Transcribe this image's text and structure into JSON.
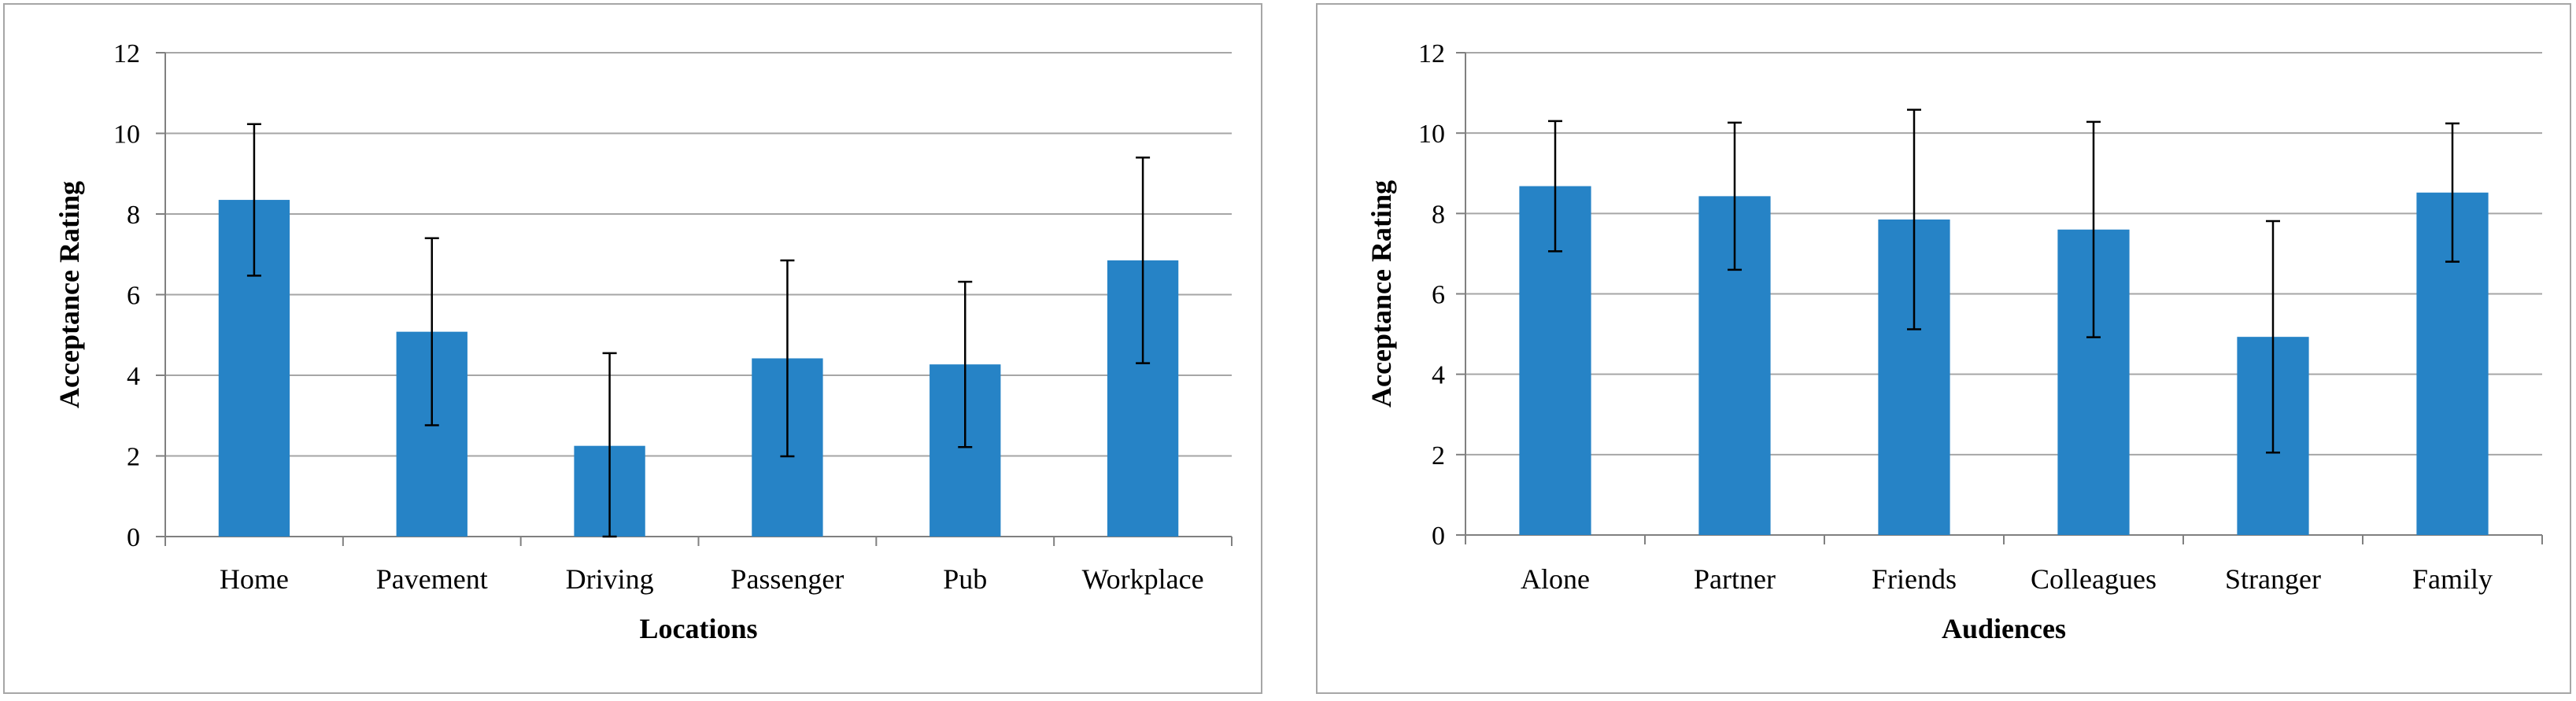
{
  "chart_data": [
    {
      "type": "bar",
      "categories": [
        "Home",
        "Pavement",
        "Driving",
        "Passenger",
        "Pub",
        "Workplace"
      ],
      "values": [
        8.35,
        5.08,
        2.25,
        4.42,
        4.27,
        6.85
      ],
      "errors": [
        1.88,
        2.32,
        2.3,
        2.43,
        2.05,
        2.55
      ],
      "xlabel": "Locations",
      "ylabel": "Acceptance Rating",
      "ylim": [
        0,
        12
      ],
      "yticks": [
        "0",
        "2",
        "4",
        "6",
        "8",
        "10",
        "12"
      ],
      "grid": true,
      "bar_color": "#2683C6"
    },
    {
      "type": "bar",
      "categories": [
        "Alone",
        "Partner",
        "Friends",
        "Colleagues",
        "Stranger",
        "Family"
      ],
      "values": [
        8.68,
        8.43,
        7.85,
        7.6,
        4.93,
        8.52
      ],
      "errors": [
        1.62,
        1.83,
        2.73,
        2.68,
        2.88,
        1.72
      ],
      "xlabel": "Audiences",
      "ylabel": "Acceptance Rating",
      "ylim": [
        0,
        12
      ],
      "yticks": [
        "0",
        "2",
        "4",
        "6",
        "8",
        "10",
        "12"
      ],
      "grid": true,
      "bar_color": "#2683C6"
    }
  ]
}
